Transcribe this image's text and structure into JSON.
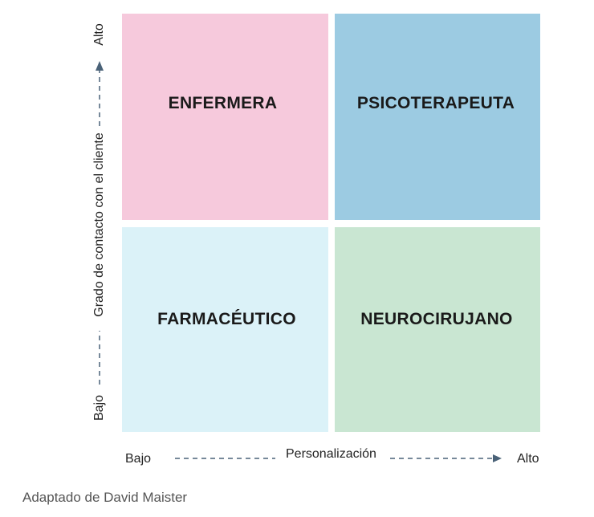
{
  "quadrants": {
    "top_left": "ENFERMERA",
    "top_right": "PSICOTERAPEUTA",
    "bottom_left": "FARMACÉUTICO",
    "bottom_right": "NEUROCIRUJANO"
  },
  "x_axis": {
    "title": "Personalización",
    "low": "Bajo",
    "high": "Alto"
  },
  "y_axis": {
    "title": "Grado de contacto con el cliente",
    "low": "Bajo",
    "high": "Alto"
  },
  "credit": "Adaptado de David Maister",
  "colors": {
    "top_left": "#f6c9dc",
    "top_right": "#9ccbe2",
    "bottom_left": "#dbf2f8",
    "bottom_right": "#c9e6d2",
    "arrow": "#4a6278"
  }
}
